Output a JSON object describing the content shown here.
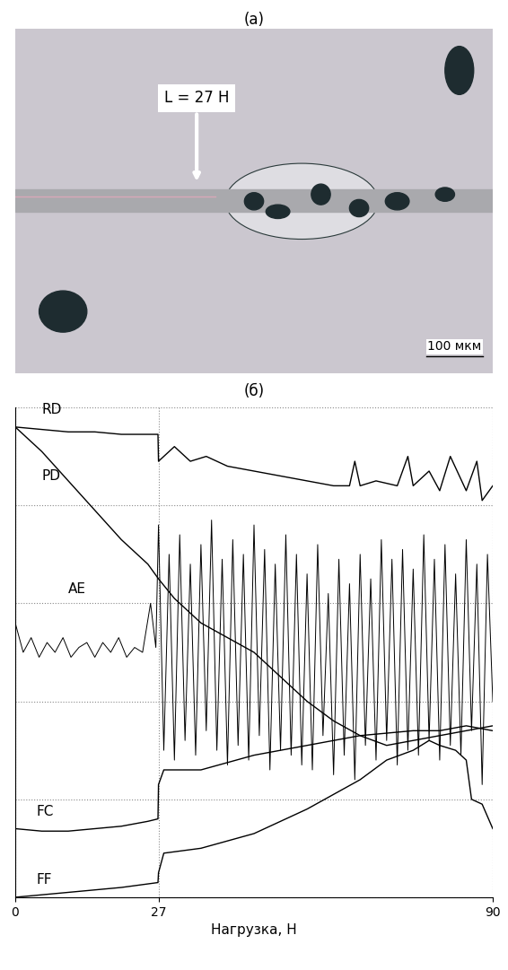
{
  "image_panel": {
    "label": "(a)",
    "annotation": "L = 27 Н",
    "scale_bar": "100 мкм"
  },
  "chart_panel_label": "(б)",
  "chart_data": {
    "type": "line",
    "x_label": "Нагрузка, Н",
    "xlim": [
      0,
      90
    ],
    "xticks": [
      0,
      27,
      90
    ],
    "ylim": [
      0,
      10
    ],
    "yticks": [
      0,
      2,
      4,
      6,
      8,
      10
    ],
    "tick_labels": "x",
    "grid": true,
    "series": [
      {
        "name": "RD",
        "color": "#000000",
        "x": [
          0,
          5,
          10,
          15,
          20,
          25,
          26.9,
          27,
          30,
          33,
          36,
          40,
          45,
          50,
          55,
          60,
          63,
          64,
          65,
          68,
          72,
          74,
          75,
          78,
          80,
          82,
          85,
          87,
          88,
          90
        ],
        "values": [
          9.6,
          9.55,
          9.5,
          9.5,
          9.45,
          9.45,
          9.45,
          8.9,
          9.2,
          8.9,
          9.0,
          8.8,
          8.7,
          8.6,
          8.5,
          8.4,
          8.4,
          8.9,
          8.4,
          8.5,
          8.4,
          9.0,
          8.4,
          8.7,
          8.3,
          9.0,
          8.3,
          8.9,
          8.1,
          8.4
        ]
      },
      {
        "name": "PD",
        "color": "#000000",
        "x": [
          0,
          5,
          10,
          15,
          20,
          25,
          27,
          30,
          35,
          40,
          45,
          50,
          55,
          60,
          65,
          70,
          75,
          80,
          85,
          90
        ],
        "values": [
          9.6,
          9.1,
          8.5,
          7.9,
          7.3,
          6.8,
          6.5,
          6.1,
          5.6,
          5.3,
          5.0,
          4.5,
          4.0,
          3.6,
          3.3,
          3.1,
          3.2,
          3.3,
          3.4,
          3.5
        ]
      },
      {
        "name": "AE",
        "color": "#000000",
        "x": [
          0,
          1.5,
          3,
          4.5,
          6,
          7.5,
          9,
          10.5,
          12,
          13.5,
          15,
          16.5,
          18,
          19.5,
          21,
          22.5,
          24,
          25.5,
          26.5,
          27,
          28,
          29,
          30,
          31,
          32,
          33,
          34,
          35,
          36,
          37,
          38,
          39,
          40,
          41,
          42,
          43,
          44,
          45,
          46,
          47,
          48,
          49,
          50,
          51,
          52,
          53,
          54,
          55,
          56,
          57,
          58,
          59,
          60,
          61,
          62,
          63,
          64,
          65,
          66,
          67,
          68,
          69,
          70,
          71,
          72,
          73,
          74,
          75,
          76,
          77,
          78,
          79,
          80,
          81,
          82,
          83,
          84,
          85,
          86,
          87,
          88,
          89,
          90
        ],
        "values": [
          5.6,
          5.0,
          5.3,
          4.9,
          5.2,
          5.0,
          5.3,
          4.9,
          5.1,
          5.2,
          4.9,
          5.2,
          5.0,
          5.3,
          4.9,
          5.1,
          5.0,
          6.0,
          5.1,
          7.6,
          3.0,
          7.0,
          2.8,
          7.4,
          3.2,
          6.8,
          2.9,
          7.2,
          3.4,
          7.7,
          3.0,
          6.9,
          2.7,
          7.3,
          3.1,
          7.0,
          2.8,
          7.6,
          3.3,
          7.1,
          2.6,
          6.8,
          3.0,
          7.4,
          2.9,
          7.0,
          2.7,
          6.6,
          2.6,
          7.2,
          3.3,
          6.2,
          2.5,
          6.9,
          2.9,
          6.4,
          2.4,
          7.0,
          3.1,
          6.5,
          2.8,
          7.3,
          3.2,
          6.9,
          2.7,
          7.1,
          3.0,
          6.7,
          2.9,
          7.4,
          3.2,
          6.9,
          2.8,
          7.2,
          3.1,
          6.6,
          2.9,
          7.3,
          3.4,
          6.8,
          2.3,
          7.0,
          4.0
        ]
      },
      {
        "name": "FC",
        "color": "#000000",
        "x": [
          0,
          5,
          10,
          15,
          20,
          25,
          26.9,
          27,
          28,
          35,
          45,
          55,
          65,
          75,
          80,
          85,
          90
        ],
        "values": [
          1.4,
          1.35,
          1.35,
          1.4,
          1.45,
          1.55,
          1.6,
          2.3,
          2.6,
          2.6,
          2.9,
          3.1,
          3.3,
          3.4,
          3.4,
          3.5,
          3.4
        ]
      },
      {
        "name": "FF",
        "color": "#000000",
        "x": [
          0,
          10,
          20,
          26.9,
          27,
          28,
          35,
          45,
          55,
          60,
          65,
          70,
          75,
          78,
          80,
          83,
          85,
          86,
          88,
          90
        ],
        "values": [
          0.0,
          0.1,
          0.2,
          0.3,
          0.5,
          0.9,
          1.0,
          1.3,
          1.8,
          2.1,
          2.4,
          2.8,
          3.0,
          3.2,
          3.1,
          3.0,
          2.8,
          2.0,
          1.9,
          1.4
        ]
      }
    ]
  }
}
